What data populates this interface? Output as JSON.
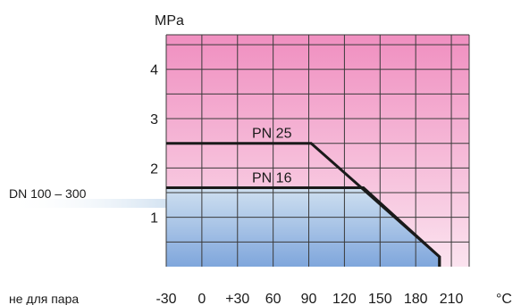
{
  "chart_data": {
    "type": "line",
    "ylabel": "MPa",
    "xunit": "°C",
    "x_ticks": [
      "-30",
      "0",
      "+30",
      "60",
      "90",
      "120",
      "150",
      "180",
      "210"
    ],
    "y_ticks": [
      "1",
      "2",
      "3",
      "4"
    ],
    "xlim": [
      -30,
      225
    ],
    "ylim": [
      0,
      4.7
    ],
    "grid": true,
    "colors": {
      "top_gradient": "#f08fc0",
      "mid_gradient": "#fbe3ef",
      "fill_top": "#cfe0f0",
      "fill_bottom": "#7fa6dc",
      "grid": "#3a3a3a",
      "line": "#1a1a1a"
    },
    "series": [
      {
        "name": "PN 25",
        "x": [
          -30,
          92,
          200,
          200
        ],
        "y": [
          2.5,
          2.5,
          0.2,
          0
        ]
      },
      {
        "name": "PN 16",
        "x": [
          -30,
          136,
          200,
          200
        ],
        "y": [
          1.6,
          1.6,
          0.2,
          0
        ]
      }
    ],
    "left_labels": {
      "dn": "DN 100 – 300",
      "note": "не для пара"
    }
  }
}
